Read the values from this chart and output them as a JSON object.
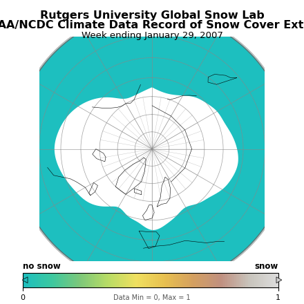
{
  "title_line1": "Rutgers University Global Snow Lab",
  "title_line2": "NOAA/NCDC Climate Data Record of Snow Cover Extent",
  "title_line3": "Week ending January 29, 2007",
  "colorbar_label_left": "no snow",
  "colorbar_label_right": "snow",
  "colorbar_note": "Data Min = 0, Max = 1",
  "ocean_teal": "#1DBFBF",
  "land_gray": "#BBBBBB",
  "snow_white": "#FFFFFF",
  "grid_color": "#888888",
  "background_color": "#FFFFFF",
  "title_fontsize": 11.5,
  "subtitle_fontsize": 9.5,
  "note_fontsize": 7,
  "colorbar_colors": [
    "#1DBFBF",
    "#3CC8A0",
    "#7DC87A",
    "#B8DC65",
    "#F0E060",
    "#E8C050",
    "#D4A060",
    "#C09080",
    "#C8C4BC",
    "#DCDCDC"
  ],
  "cbar_arrow_left_color": "#1DBFBF",
  "cbar_arrow_right_color": "#D0D0D0"
}
